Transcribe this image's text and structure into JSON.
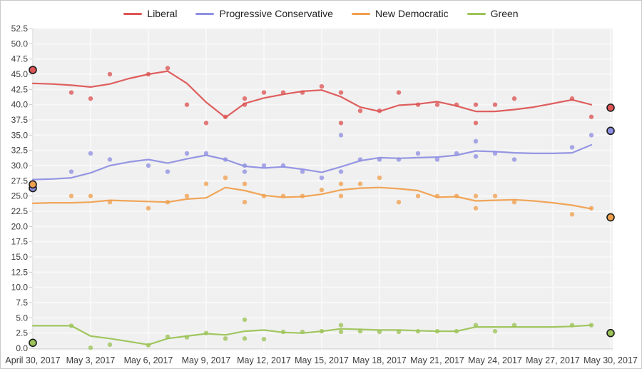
{
  "chart": {
    "legend": {
      "items": [
        {
          "label": "Liberal",
          "color": "#dd5555"
        },
        {
          "label": "Progressive Conservative",
          "color": "#8f90e2"
        },
        {
          "label": "New Democratic",
          "color": "#efa04f"
        },
        {
          "label": "Green",
          "color": "#9cc357"
        }
      ]
    },
    "plot": {
      "background": "#f0f0f0",
      "gridline_color": "#f8f8f8",
      "axis_line_color": "#d8d8d8",
      "tick_color": "#c8c8c8",
      "label_color": "#3c3c3c"
    }
  },
  "chart_data": {
    "type": "scatter",
    "title": "",
    "legend_position": "top",
    "grid": true,
    "x_axis": {
      "tick_labels": [
        "April 30, 2017",
        "May 3, 2017",
        "May 6, 2017",
        "May 9, 2017",
        "May 12, 2017",
        "May 15, 2017",
        "May 18, 2017",
        "May 21, 2017",
        "May 24, 2017",
        "May 27, 2017",
        "May 30, 2017"
      ],
      "tick_days": [
        0,
        3,
        6,
        9,
        12,
        15,
        18,
        21,
        24,
        27,
        30
      ],
      "range_days": [
        0,
        30
      ]
    },
    "y_axis": {
      "min": 0,
      "max": 52.5,
      "step": 2.5,
      "tick_labels": [
        "0.0",
        "2.5",
        "5.0",
        "7.5",
        "10.0",
        "12.5",
        "15.0",
        "17.5",
        "20.0",
        "22.5",
        "25.0",
        "27.5",
        "30.0",
        "32.5",
        "35.0",
        "37.5",
        "40.0",
        "42.5",
        "45.0",
        "47.5",
        "50.0",
        "52.5"
      ]
    },
    "series": [
      {
        "name": "Liberal",
        "color": "#dd5555",
        "polls_day_value": [
          [
            2,
            42
          ],
          [
            3,
            41
          ],
          [
            4,
            45
          ],
          [
            6,
            45
          ],
          [
            7,
            46
          ],
          [
            8,
            40
          ],
          [
            9,
            37
          ],
          [
            10,
            38
          ],
          [
            11,
            41
          ],
          [
            11,
            40
          ],
          [
            12,
            42
          ],
          [
            13,
            42
          ],
          [
            14,
            42
          ],
          [
            15,
            43
          ],
          [
            16,
            42
          ],
          [
            16,
            37
          ],
          [
            17,
            39
          ],
          [
            18,
            39
          ],
          [
            19,
            42
          ],
          [
            20,
            40
          ],
          [
            21,
            40
          ],
          [
            22,
            40
          ],
          [
            23,
            40
          ],
          [
            23,
            37
          ],
          [
            24,
            40
          ],
          [
            25,
            41
          ],
          [
            28,
            41
          ],
          [
            29,
            38
          ]
        ],
        "trend_day_value": [
          [
            0,
            43.5
          ],
          [
            1,
            43.4
          ],
          [
            2,
            43.2
          ],
          [
            3,
            42.9
          ],
          [
            4,
            43.4
          ],
          [
            5,
            44.3
          ],
          [
            6,
            45.0
          ],
          [
            7,
            45.5
          ],
          [
            8,
            43.5
          ],
          [
            9,
            40.4
          ],
          [
            10,
            37.9
          ],
          [
            11,
            40.2
          ],
          [
            12,
            41.1
          ],
          [
            13,
            41.7
          ],
          [
            14,
            42.2
          ],
          [
            15,
            42.4
          ],
          [
            16,
            41.3
          ],
          [
            17,
            39.6
          ],
          [
            18,
            38.9
          ],
          [
            19,
            39.9
          ],
          [
            20,
            40.1
          ],
          [
            21,
            40.5
          ],
          [
            22,
            39.8
          ],
          [
            23,
            38.9
          ],
          [
            24,
            38.9
          ],
          [
            25,
            39.2
          ],
          [
            26,
            39.6
          ],
          [
            27,
            40.2
          ],
          [
            28,
            40.8
          ],
          [
            29,
            40.0
          ]
        ],
        "election_result_markers": [
          [
            0,
            45.7
          ],
          [
            30,
            39.5
          ]
        ]
      },
      {
        "name": "Progressive Conservative",
        "color": "#8f90e2",
        "polls_day_value": [
          [
            2,
            29
          ],
          [
            3,
            32
          ],
          [
            4,
            31
          ],
          [
            6,
            30
          ],
          [
            7,
            29
          ],
          [
            8,
            32
          ],
          [
            9,
            32
          ],
          [
            10,
            31
          ],
          [
            11,
            30
          ],
          [
            11,
            29
          ],
          [
            12,
            30
          ],
          [
            13,
            30
          ],
          [
            14,
            29
          ],
          [
            15,
            28
          ],
          [
            16,
            35
          ],
          [
            16,
            29
          ],
          [
            17,
            31
          ],
          [
            18,
            31
          ],
          [
            19,
            31
          ],
          [
            20,
            32
          ],
          [
            21,
            31
          ],
          [
            22,
            32
          ],
          [
            23,
            34
          ],
          [
            23,
            31.5
          ],
          [
            24,
            32
          ],
          [
            25,
            31
          ],
          [
            28,
            33
          ],
          [
            29,
            35
          ]
        ],
        "trend_day_value": [
          [
            0,
            27.7
          ],
          [
            1,
            27.8
          ],
          [
            2,
            28.0
          ],
          [
            3,
            28.8
          ],
          [
            4,
            30.0
          ],
          [
            5,
            30.6
          ],
          [
            6,
            31.0
          ],
          [
            7,
            30.4
          ],
          [
            8,
            31.1
          ],
          [
            9,
            31.7
          ],
          [
            10,
            31.0
          ],
          [
            11,
            29.9
          ],
          [
            12,
            29.6
          ],
          [
            13,
            29.8
          ],
          [
            14,
            29.4
          ],
          [
            15,
            28.9
          ],
          [
            16,
            29.8
          ],
          [
            17,
            30.8
          ],
          [
            18,
            31.3
          ],
          [
            19,
            31.2
          ],
          [
            20,
            31.3
          ],
          [
            21,
            31.4
          ],
          [
            22,
            31.7
          ],
          [
            23,
            32.4
          ],
          [
            24,
            32.3
          ],
          [
            25,
            32.1
          ],
          [
            26,
            32.0
          ],
          [
            27,
            32.0
          ],
          [
            28,
            32.1
          ],
          [
            29,
            33.4
          ]
        ],
        "election_result_markers": [
          [
            0,
            26.3
          ],
          [
            30,
            35.7
          ]
        ]
      },
      {
        "name": "New Democratic",
        "color": "#efa04f",
        "polls_day_value": [
          [
            2,
            25
          ],
          [
            3,
            25
          ],
          [
            4,
            24
          ],
          [
            6,
            23
          ],
          [
            7,
            24
          ],
          [
            8,
            25
          ],
          [
            9,
            27
          ],
          [
            10,
            28
          ],
          [
            11,
            27
          ],
          [
            11,
            24
          ],
          [
            12,
            25
          ],
          [
            13,
            25
          ],
          [
            14,
            25
          ],
          [
            15,
            26
          ],
          [
            16,
            27
          ],
          [
            16,
            25
          ],
          [
            17,
            27
          ],
          [
            18,
            28
          ],
          [
            19,
            24
          ],
          [
            20,
            25
          ],
          [
            21,
            25
          ],
          [
            22,
            25
          ],
          [
            23,
            25
          ],
          [
            23,
            23
          ],
          [
            24,
            25
          ],
          [
            25,
            24
          ],
          [
            28,
            22
          ],
          [
            29,
            23
          ]
        ],
        "trend_day_value": [
          [
            0,
            23.8
          ],
          [
            1,
            23.9
          ],
          [
            2,
            23.9
          ],
          [
            3,
            24.0
          ],
          [
            4,
            24.3
          ],
          [
            5,
            24.2
          ],
          [
            6,
            24.1
          ],
          [
            7,
            24.0
          ],
          [
            8,
            24.5
          ],
          [
            9,
            24.7
          ],
          [
            10,
            26.4
          ],
          [
            11,
            25.9
          ],
          [
            12,
            25.1
          ],
          [
            13,
            24.8
          ],
          [
            14,
            24.9
          ],
          [
            15,
            25.3
          ],
          [
            16,
            26.0
          ],
          [
            17,
            26.3
          ],
          [
            18,
            26.4
          ],
          [
            19,
            26.2
          ],
          [
            20,
            25.9
          ],
          [
            21,
            24.8
          ],
          [
            22,
            24.9
          ],
          [
            23,
            24.2
          ],
          [
            24,
            24.3
          ],
          [
            25,
            24.4
          ],
          [
            26,
            24.2
          ],
          [
            27,
            23.9
          ],
          [
            28,
            23.5
          ],
          [
            29,
            22.9
          ]
        ],
        "election_result_markers": [
          [
            0,
            26.9
          ],
          [
            30,
            21.5
          ]
        ]
      },
      {
        "name": "Green",
        "color": "#9cc357",
        "polls_day_value": [
          [
            2,
            3.7
          ],
          [
            3,
            0.1
          ],
          [
            4,
            0.6
          ],
          [
            6,
            0.5
          ],
          [
            7,
            1.9
          ],
          [
            8,
            1.8
          ],
          [
            9,
            2.5
          ],
          [
            10,
            1.6
          ],
          [
            11,
            4.7
          ],
          [
            11,
            1.6
          ],
          [
            12,
            1.5
          ],
          [
            13,
            2.7
          ],
          [
            14,
            2.7
          ],
          [
            15,
            2.8
          ],
          [
            16,
            3.8
          ],
          [
            16,
            2.7
          ],
          [
            17,
            2.8
          ],
          [
            18,
            2.7
          ],
          [
            19,
            2.7
          ],
          [
            20,
            2.8
          ],
          [
            21,
            2.8
          ],
          [
            22,
            2.8
          ],
          [
            23,
            3.8
          ],
          [
            24,
            2.8
          ],
          [
            25,
            3.8
          ],
          [
            28,
            3.8
          ],
          [
            29,
            3.8
          ]
        ],
        "trend_day_value": [
          [
            0,
            3.7
          ],
          [
            1,
            3.7
          ],
          [
            2,
            3.7
          ],
          [
            3,
            2.0
          ],
          [
            4,
            1.6
          ],
          [
            5,
            1.1
          ],
          [
            6,
            0.6
          ],
          [
            7,
            1.6
          ],
          [
            8,
            2.0
          ],
          [
            9,
            2.4
          ],
          [
            10,
            2.2
          ],
          [
            11,
            2.8
          ],
          [
            12,
            3.0
          ],
          [
            13,
            2.6
          ],
          [
            14,
            2.5
          ],
          [
            15,
            2.8
          ],
          [
            16,
            3.2
          ],
          [
            17,
            3.1
          ],
          [
            18,
            3.0
          ],
          [
            19,
            3.0
          ],
          [
            20,
            2.9
          ],
          [
            21,
            2.8
          ],
          [
            22,
            2.8
          ],
          [
            23,
            3.5
          ],
          [
            24,
            3.5
          ],
          [
            25,
            3.5
          ],
          [
            26,
            3.5
          ],
          [
            27,
            3.5
          ],
          [
            28,
            3.6
          ],
          [
            29,
            3.8
          ]
        ],
        "election_result_markers": [
          [
            0,
            0.9
          ],
          [
            30,
            2.5
          ]
        ]
      }
    ]
  }
}
